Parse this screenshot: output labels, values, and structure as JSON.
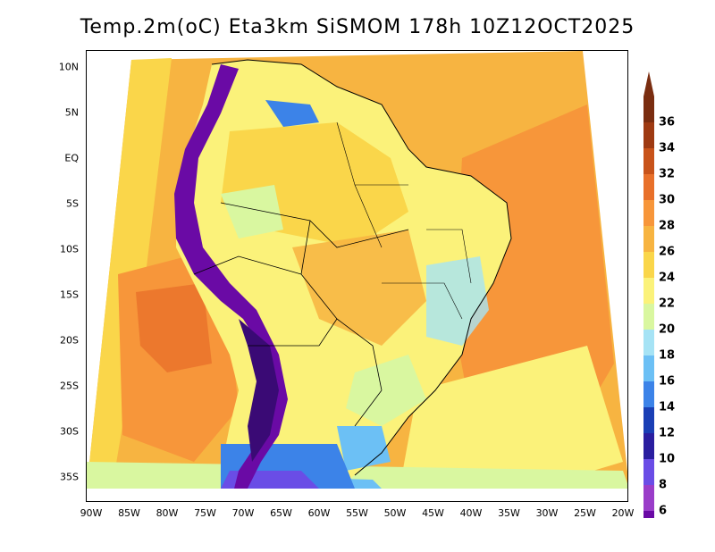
{
  "title": "Temp.2m(oC) Eta3km SiSMOM 178h 10Z12OCT2025",
  "map": {
    "region": "South America",
    "variable": "2m Temperature",
    "units": "oC",
    "lat_labels": [
      "10N",
      "5N",
      "EQ",
      "5S",
      "10S",
      "15S",
      "20S",
      "25S",
      "30S",
      "35S"
    ],
    "lon_labels": [
      "90W",
      "85W",
      "80W",
      "75W",
      "70W",
      "65W",
      "60W",
      "55W",
      "50W",
      "45W",
      "40W",
      "35W",
      "30W",
      "25W",
      "20W"
    ]
  },
  "colorbar": {
    "labels": [
      "36",
      "34",
      "32",
      "30",
      "28",
      "26",
      "24",
      "22",
      "20",
      "18",
      "16",
      "14",
      "12",
      "10",
      "8",
      "6"
    ],
    "colors": [
      "#7a2d10",
      "#9e3a12",
      "#c8531a",
      "#e8702a",
      "#f7963a",
      "#f7b441",
      "#fad64a",
      "#fbf27a",
      "#d9f7a0",
      "#a6e3f5",
      "#6cc0f5",
      "#3c83e8",
      "#1a3fb5",
      "#2a1ea0",
      "#6a4de6",
      "#9a3dc9",
      "#6a0aa5"
    ]
  }
}
